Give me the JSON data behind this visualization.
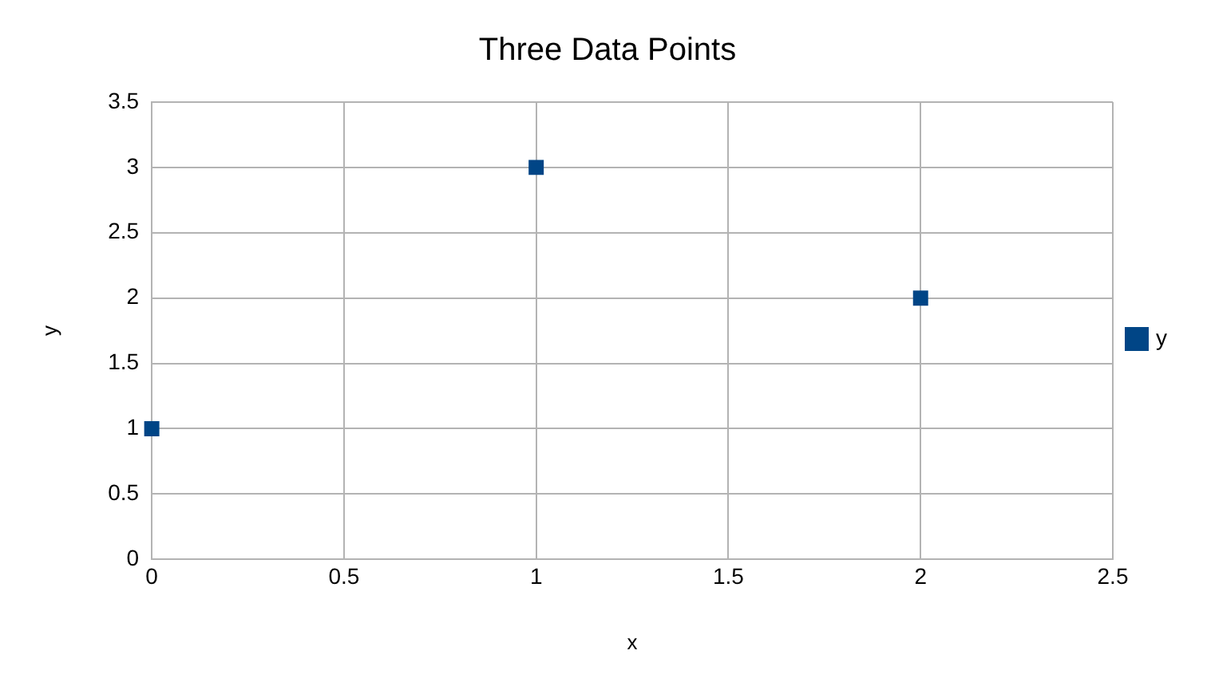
{
  "chart_data": {
    "type": "scatter",
    "title": "Three Data Points",
    "xlabel": "x",
    "ylabel": "y",
    "x": [
      0,
      1,
      2
    ],
    "series": [
      {
        "name": "y",
        "color": "#004586",
        "values": [
          1,
          3,
          2
        ]
      }
    ],
    "xlim": [
      0,
      2.5
    ],
    "xticks": [
      0,
      0.5,
      1,
      1.5,
      2,
      2.5
    ],
    "ylim": [
      0,
      3.5
    ],
    "yticks": [
      0,
      0.5,
      1,
      1.5,
      2,
      2.5,
      3,
      3.5
    ],
    "grid": true,
    "legend": "right",
    "marker": "square"
  }
}
